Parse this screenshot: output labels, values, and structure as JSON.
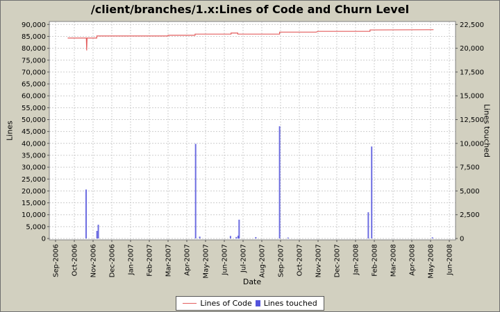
{
  "window": {
    "background": "#d2d0c0",
    "plot_background": "#ffffff",
    "plot_border": "#808080",
    "grid_color": "#cccccc"
  },
  "chart_data": {
    "type": "line+bar",
    "title": "/client/branches/1.x:Lines of Code and Churn Level",
    "xlabel": "Date",
    "ylabel_left": "Lines",
    "ylabel_right": "Lines touched",
    "x_tick_labels": [
      "Sep-2006",
      "Oct-2006",
      "Nov-2006",
      "Dec-2006",
      "Jan-2007",
      "Feb-2007",
      "Mar-2007",
      "Apr-2007",
      "May-2007",
      "Jun-2007",
      "Jul-2007",
      "Aug-2007",
      "Sep-2007",
      "Oct-2007",
      "Nov-2007",
      "Dec-2007",
      "Jan-2008",
      "Feb-2008",
      "Mar-2008",
      "Apr-2008",
      "May-2008",
      "Jun-2008"
    ],
    "left_axis": {
      "min": 0,
      "max": 90000,
      "step": 5000
    },
    "right_axis": {
      "min": 0,
      "max": 22500,
      "step": 2500
    },
    "grid": {
      "show": true,
      "style": "dashed"
    },
    "legend_position": "bottom-center",
    "x_unit": "months since Sep-2006 tick",
    "series": [
      {
        "name": "Lines of Code",
        "type": "line",
        "axis": "left",
        "color": "#e35d5d",
        "points": [
          [
            0.65,
            84300
          ],
          [
            1.64,
            84300
          ],
          [
            1.66,
            79100
          ],
          [
            1.68,
            84300
          ],
          [
            2.2,
            84300
          ],
          [
            2.2,
            85150
          ],
          [
            6.0,
            85150
          ],
          [
            6.0,
            85450
          ],
          [
            7.44,
            85450
          ],
          [
            7.44,
            85950
          ],
          [
            9.36,
            85950
          ],
          [
            9.36,
            86400
          ],
          [
            9.72,
            86400
          ],
          [
            9.72,
            85950
          ],
          [
            11.95,
            85950
          ],
          [
            11.95,
            86800
          ],
          [
            13.9,
            86800
          ],
          [
            14.0,
            87100
          ],
          [
            16.77,
            87100
          ],
          [
            16.77,
            87700
          ],
          [
            20.16,
            87800
          ]
        ]
      },
      {
        "name": "Lines touched",
        "type": "bar",
        "axis": "right",
        "color": "#5353dc",
        "points": [
          [
            1.63,
            5150
          ],
          [
            2.21,
            800
          ],
          [
            2.28,
            1450
          ],
          [
            7.47,
            9950
          ],
          [
            7.69,
            200
          ],
          [
            9.33,
            270
          ],
          [
            9.64,
            160
          ],
          [
            9.74,
            300
          ],
          [
            9.79,
            1980
          ],
          [
            10.68,
            150
          ],
          [
            11.95,
            11800
          ],
          [
            12.4,
            100
          ],
          [
            16.68,
            2760
          ],
          [
            16.86,
            9670
          ],
          [
            20.1,
            120
          ]
        ]
      }
    ]
  }
}
